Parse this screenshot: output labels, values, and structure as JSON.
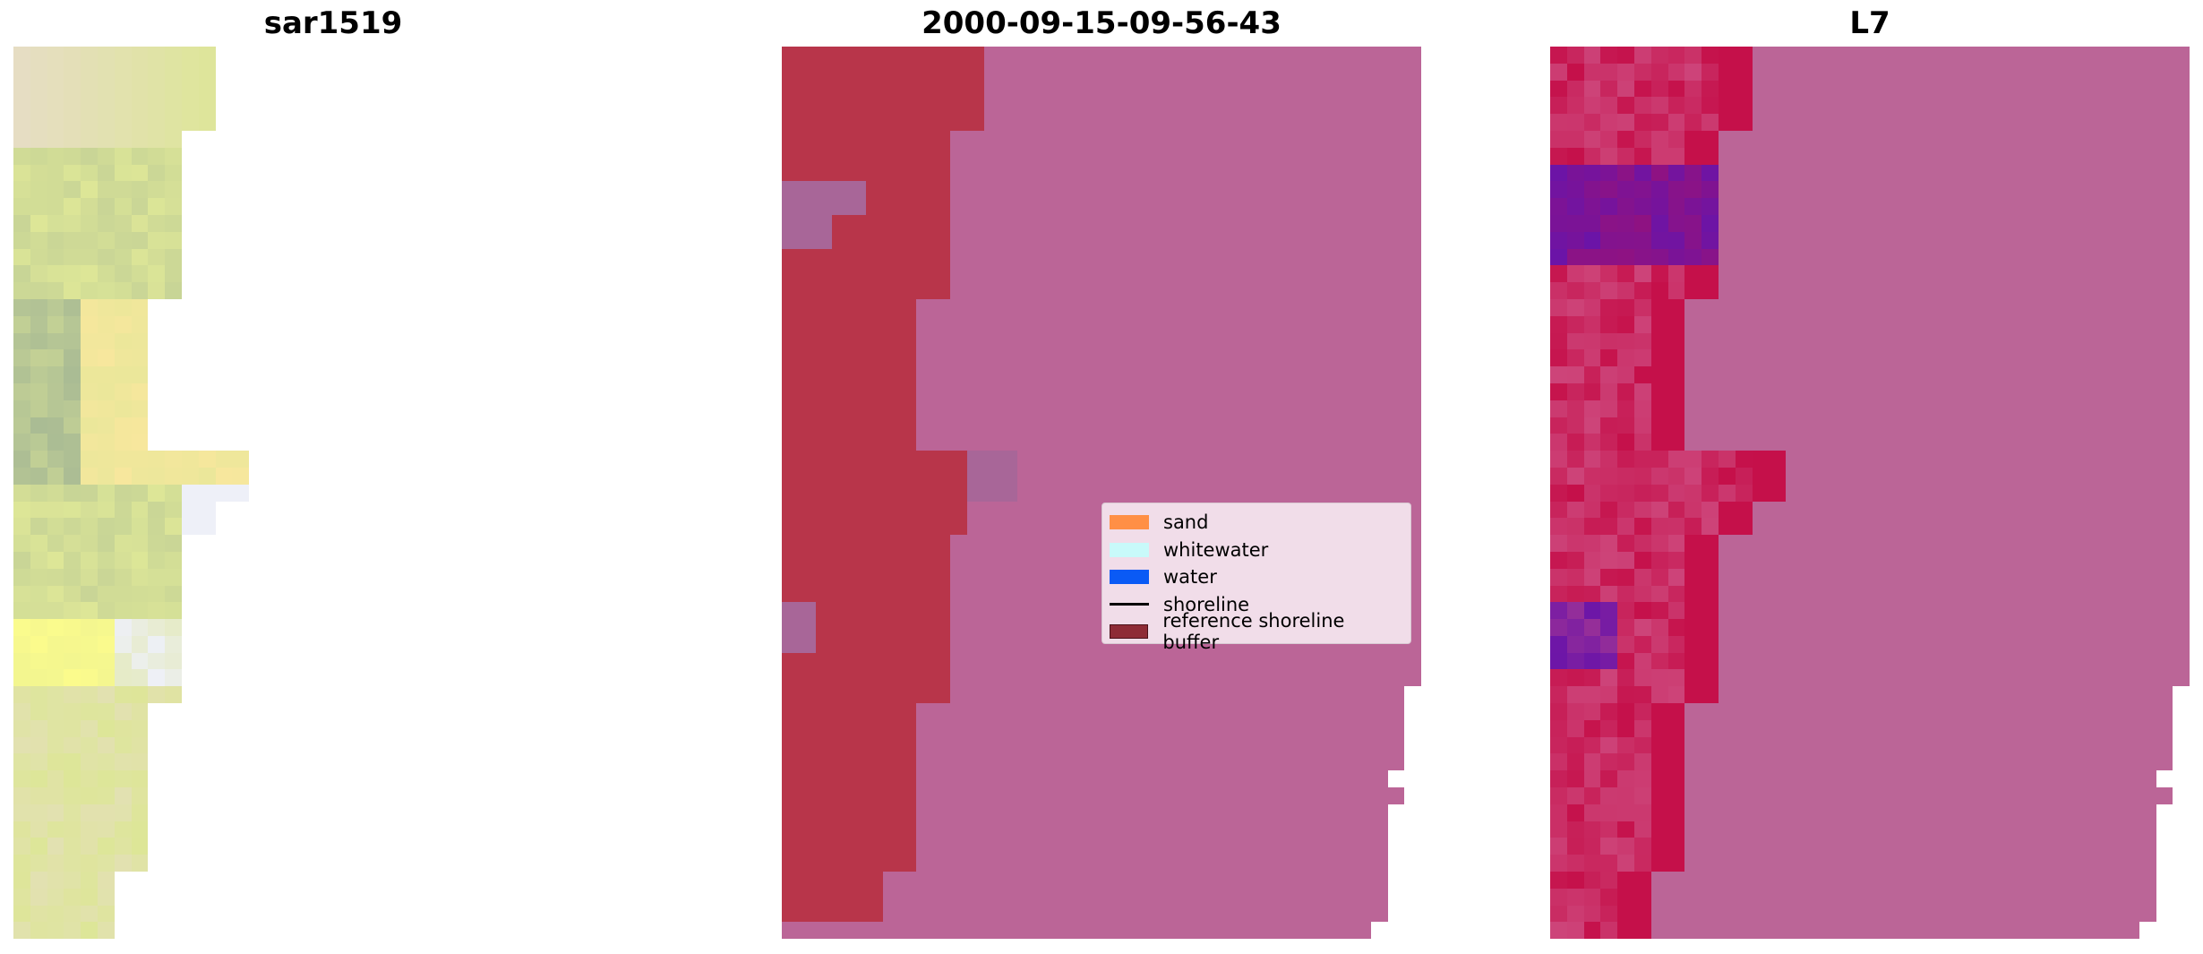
{
  "panels": [
    {
      "title": "sar1519"
    },
    {
      "title": "2000-09-15-09-56-43"
    },
    {
      "title": "L7"
    }
  ],
  "legend": {
    "items": [
      {
        "label": "sand",
        "color": "#ff8f45",
        "kind": "patch"
      },
      {
        "label": "whitewater",
        "color": "#c8fafa",
        "kind": "patch"
      },
      {
        "label": "water",
        "color": "#0a5af5",
        "kind": "patch"
      },
      {
        "label": "shoreline",
        "color": "#000000",
        "kind": "line"
      },
      {
        "label": "reference shoreline buffer",
        "color": "#8e2b36",
        "kind": "patch"
      }
    ]
  },
  "colors": {
    "rgb_sand_light": "#e6ddc3",
    "rgb_yellow_green": "#dde697",
    "rgb_greenish": "#a9bb94",
    "rgb_yellow": "#f8e79d",
    "rgb_bright_yellow": "#fcfc8c",
    "rgb_pale": "#eef0f8",
    "class_buffer": "#b8354a",
    "class_water_overlay": "#bb6597",
    "class_mixed": "#a86698",
    "ndwi_red": "#c5104a",
    "ndwi_purple": "#6a14a8",
    "ndwi_pink": "#cf5185"
  }
}
